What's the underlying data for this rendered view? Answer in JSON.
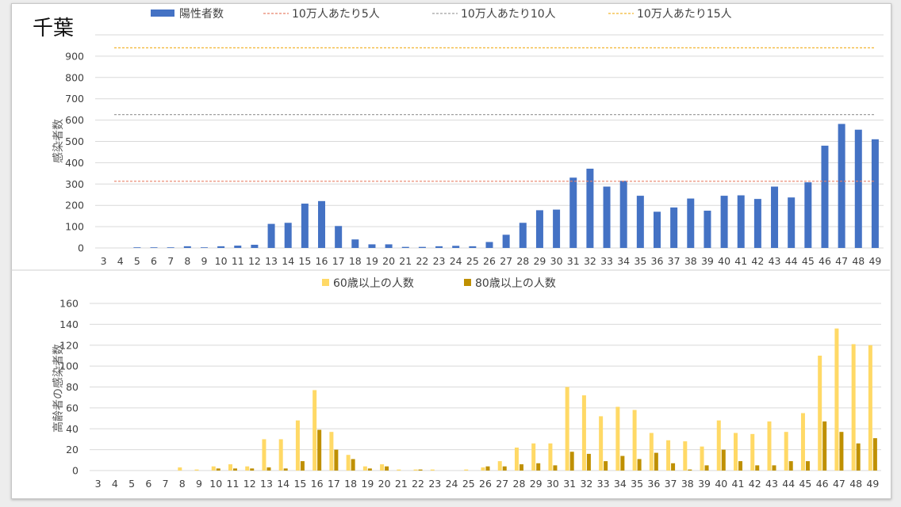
{
  "title": "千葉",
  "chart_data": [
    {
      "type": "bar",
      "legend_position": "top",
      "grid": true,
      "categories": [
        "3",
        "4",
        "5",
        "6",
        "7",
        "8",
        "9",
        "10",
        "11",
        "12",
        "13",
        "14",
        "15",
        "16",
        "17",
        "18",
        "19",
        "20",
        "21",
        "22",
        "23",
        "24",
        "25",
        "26",
        "27",
        "28",
        "29",
        "30",
        "31",
        "32",
        "33",
        "34",
        "35",
        "36",
        "37",
        "38",
        "39",
        "40",
        "41",
        "42",
        "43",
        "44",
        "45",
        "46",
        "47",
        "48",
        "49"
      ],
      "ylabel": "感染者数",
      "ylim": [
        0,
        1000
      ],
      "yticks": [
        0,
        100,
        200,
        300,
        400,
        500,
        600,
        700,
        800,
        900
      ],
      "series": [
        {
          "name": "陽性者数",
          "color": "#4472c4",
          "values": [
            0,
            0,
            3,
            3,
            3,
            8,
            3,
            8,
            11,
            15,
            113,
            118,
            208,
            220,
            103,
            40,
            17,
            17,
            5,
            5,
            8,
            10,
            8,
            28,
            62,
            118,
            177,
            180,
            330,
            372,
            288,
            315,
            245,
            170,
            190,
            232,
            175,
            245,
            247,
            230,
            288,
            237,
            308,
            480,
            582,
            555,
            510
          ]
        }
      ],
      "reference_lines": [
        {
          "name": "10万人あたり5人",
          "value": 313,
          "color": "#e8826a"
        },
        {
          "name": "10万人あたり10人",
          "value": 626,
          "color": "#a0a0a0"
        },
        {
          "name": "10万人あたり15人",
          "value": 939,
          "color": "#f2b630"
        }
      ]
    },
    {
      "type": "bar",
      "legend_position": "top",
      "grid": true,
      "categories": [
        "3",
        "4",
        "5",
        "6",
        "7",
        "8",
        "9",
        "10",
        "11",
        "12",
        "13",
        "14",
        "15",
        "16",
        "17",
        "18",
        "19",
        "20",
        "21",
        "22",
        "23",
        "24",
        "25",
        "26",
        "27",
        "28",
        "29",
        "30",
        "31",
        "32",
        "33",
        "34",
        "35",
        "36",
        "37",
        "38",
        "39",
        "40",
        "41",
        "42",
        "43",
        "44",
        "45",
        "46",
        "47",
        "48",
        "49"
      ],
      "ylabel": "高齢者の感染者数",
      "ylim": [
        0,
        160
      ],
      "yticks": [
        0,
        20,
        40,
        60,
        80,
        100,
        120,
        140,
        160
      ],
      "series": [
        {
          "name": "60歳以上の人数",
          "color": "#ffd966",
          "values": [
            0,
            0,
            0,
            0,
            0,
            3,
            1,
            4,
            6,
            4,
            30,
            30,
            48,
            77,
            37,
            15,
            4,
            6,
            1,
            1,
            1,
            0,
            1,
            3,
            9,
            22,
            26,
            26,
            80,
            72,
            52,
            61,
            58,
            36,
            29,
            28,
            23,
            48,
            36,
            35,
            47,
            37,
            55,
            110,
            136,
            121,
            120
          ]
        },
        {
          "name": "80歳以上の人数",
          "color": "#bf9000",
          "values": [
            0,
            0,
            0,
            0,
            0,
            0,
            0,
            2,
            2,
            2,
            3,
            2,
            9,
            39,
            20,
            11,
            2,
            4,
            0,
            1,
            0,
            0,
            0,
            4,
            4,
            6,
            7,
            5,
            18,
            16,
            9,
            14,
            11,
            17,
            7,
            1,
            5,
            20,
            9,
            5,
            5,
            9,
            9,
            47,
            37,
            26,
            31
          ]
        }
      ]
    }
  ]
}
